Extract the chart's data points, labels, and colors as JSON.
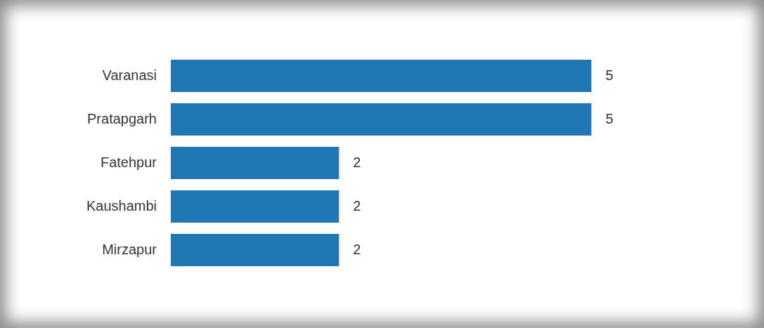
{
  "chart_data": {
    "type": "bar",
    "orientation": "horizontal",
    "categories": [
      "Varanasi",
      "Pratapgarh",
      "Fatehpur",
      "Kaushambi",
      "Mirzapur"
    ],
    "values": [
      5,
      5,
      2,
      2,
      2
    ],
    "color": "#1f77b4",
    "data_labels": true,
    "grid": false,
    "legend": false,
    "tick_labels": "y"
  }
}
